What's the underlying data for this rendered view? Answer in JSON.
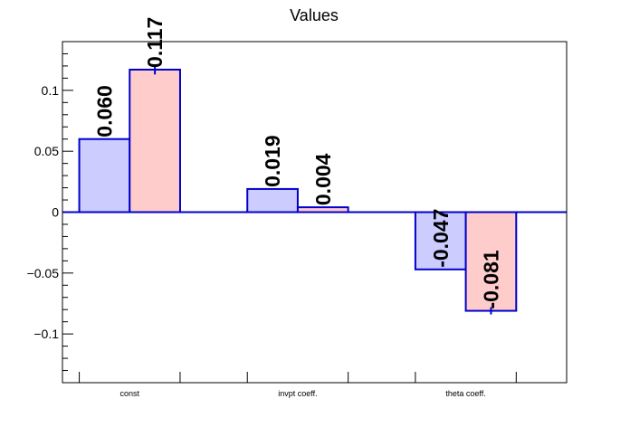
{
  "chart_data": {
    "type": "bar",
    "title": "Values",
    "xlabel": "",
    "ylabel": "",
    "categories": [
      "const",
      "invpt coeff.",
      "theta coeff."
    ],
    "series": [
      {
        "values": [
          0.06,
          0.019,
          -0.047
        ],
        "errors": [
          0.0,
          0.0,
          0.0
        ],
        "labels": [
          "0.060",
          "0.019",
          "-0.047"
        ],
        "fill": "#ccccff",
        "stroke": "#0000cc"
      },
      {
        "values": [
          0.117,
          0.004,
          -0.081
        ],
        "errors": [
          0.004,
          0.0,
          0.003
        ],
        "labels": [
          "0.117",
          "0.004",
          "-0.081"
        ],
        "fill": "#ffcccc",
        "stroke": "#0000cc"
      }
    ],
    "ylim": [
      -0.14,
      0.14
    ],
    "yticks": [
      -0.1,
      -0.05,
      0,
      0.05,
      0.1
    ],
    "ytick_labels": [
      "−0.1",
      "−0.05",
      "0",
      "0.05",
      "0.1"
    ],
    "grid": false,
    "legend": "none",
    "zero_line": true
  }
}
